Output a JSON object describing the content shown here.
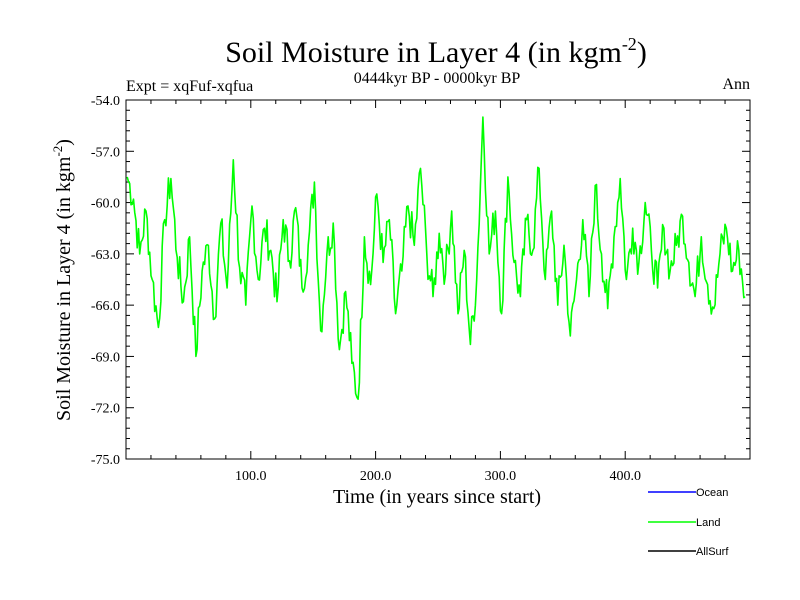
{
  "chart_data": {
    "type": "line",
    "title": "Soil Moisture in Layer 4 (in kgm",
    "title_sup": "-2",
    "title_close": ")",
    "subtitle_left": "Expt = xqFuf-xqfua",
    "subtitle_center": "0444kyr BP - 0000kyr BP",
    "subtitle_right": "Ann",
    "xlabel": "Time (in years since start)",
    "ylabel": "Soil Moisture in Layer 4 (in kgm",
    "ylabel_sup": "-2",
    "ylabel_close": ")",
    "xlim": [
      0,
      500
    ],
    "ylim": [
      -75,
      -54
    ],
    "x_ticks": [
      100,
      200,
      300,
      400
    ],
    "x_tick_labels": [
      "100.0",
      "200.0",
      "300.0",
      "400.0"
    ],
    "y_ticks": [
      -54,
      -57,
      -60,
      -63,
      -66,
      -69,
      -72,
      -75
    ],
    "y_tick_labels": [
      "-54.0",
      "-57.0",
      "-60.0",
      "-63.0",
      "-66.0",
      "-69.0",
      "-72.0",
      "-75.0"
    ],
    "legend": [
      {
        "name": "Ocean",
        "color": "#0000ff"
      },
      {
        "name": "Land",
        "color": "#00ff00"
      },
      {
        "name": "AllSurf",
        "color": "#000000"
      }
    ],
    "series": [
      {
        "name": "Land",
        "color": "#00ff00",
        "x_start": 1,
        "x_step": 5,
        "values": [
          -58.5,
          -59.8,
          -63.0,
          -60.5,
          -64.5,
          -67.3,
          -61.0,
          -58.6,
          -63.2,
          -65.8,
          -62.0,
          -69.0,
          -64.0,
          -62.5,
          -66.8,
          -61.2,
          -65.0,
          -57.5,
          -63.8,
          -66.0,
          -60.2,
          -64.5,
          -61.5,
          -62.8,
          -65.8,
          -61.0,
          -63.4,
          -60.3,
          -65.0,
          -62.5,
          -58.8,
          -67.5,
          -63.0,
          -61.2,
          -68.6,
          -65.2,
          -69.4,
          -71.5,
          -62.0,
          -64.8,
          -59.5,
          -63.5,
          -61.0,
          -66.5,
          -64.0,
          -60.2,
          -62.5,
          -58.0,
          -63.0,
          -65.5,
          -61.8,
          -64.2,
          -60.5,
          -66.5,
          -62.8,
          -68.3,
          -64.5,
          -55.0,
          -63.0,
          -60.5,
          -66.5,
          -58.5,
          -63.5,
          -65.5,
          -61.0,
          -62.8,
          -58.0,
          -64.5,
          -60.5,
          -66.0,
          -62.5,
          -67.8,
          -64.5,
          -61.0,
          -65.5,
          -59.0,
          -63.0,
          -66.2,
          -62.0,
          -58.6,
          -64.5,
          -61.5,
          -63.5,
          -60.0,
          -62.8,
          -65.0,
          -61.5,
          -64.0,
          -62.5,
          -60.8,
          -63.5,
          -65.5,
          -62.0,
          -64.8,
          -66.2,
          -63.0,
          -61.5,
          -64.0,
          -62.8,
          -65.5
        ]
      }
    ]
  }
}
